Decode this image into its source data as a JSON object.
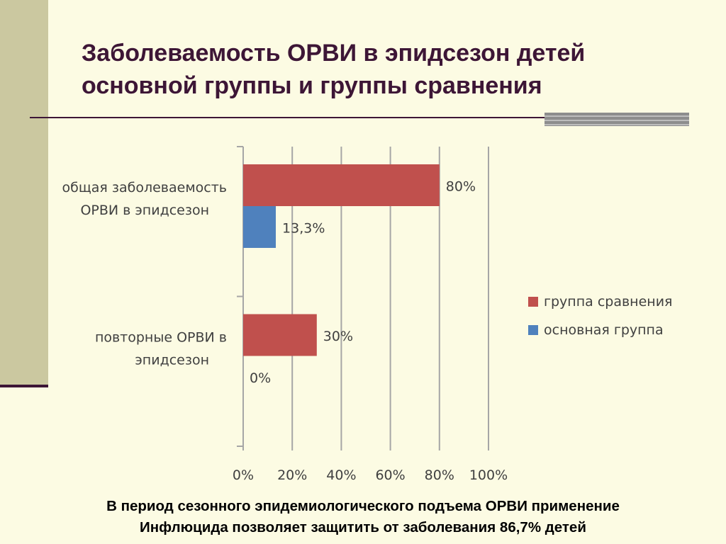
{
  "slide": {
    "title_line1": "Заболеваемость ОРВИ в эпидсезон детей",
    "title_line2": "основной группы и группы сравнения",
    "footer_line1": "В период сезонного эпидемиологического подъема ОРВИ применение",
    "footer_line2": "Инфлюцида позволяет защитить от заболевания 86,7% детей"
  },
  "colors": {
    "comparison_group": "#c0504d",
    "main_group": "#4f81bd",
    "grid": "#a6a6a6",
    "text": "#404040"
  },
  "chart_data": {
    "type": "bar",
    "orientation": "horizontal",
    "categories": [
      [
        "общая заболеваемость",
        "ОРВИ в эпидсезон"
      ],
      [
        "повторные ОРВИ в",
        "эпидсезон"
      ]
    ],
    "series": [
      {
        "name": "группа сравнения",
        "values": [
          80,
          30
        ],
        "labels": [
          "80%",
          "30%"
        ]
      },
      {
        "name": "основная группа",
        "values": [
          13.3,
          0
        ],
        "labels": [
          "13,3%",
          "0%"
        ]
      }
    ],
    "x_ticks": [
      "0%",
      "20%",
      "40%",
      "60%",
      "80%",
      "100%"
    ],
    "xlim": [
      0,
      100
    ],
    "grid": true,
    "legend_position": "right"
  }
}
